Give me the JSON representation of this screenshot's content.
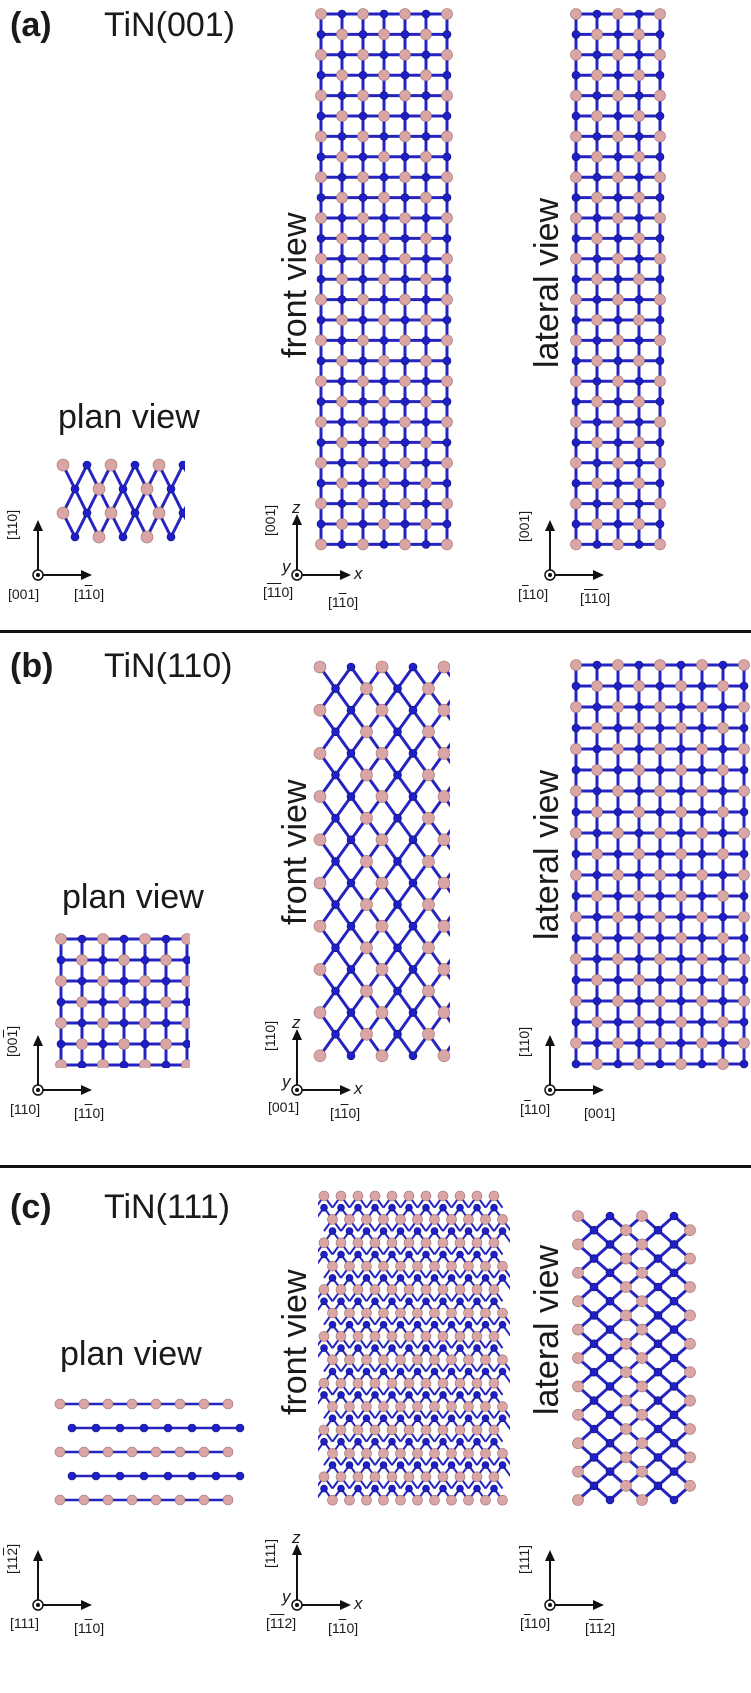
{
  "panels": [
    {
      "label": "(a)",
      "title_prefix": "TiN",
      "title_suffix": "(001)",
      "plan_view_label": "plan view",
      "front_view_label": "front view",
      "lateral_view_label": "lateral view",
      "plan_axes": {
        "vertical": "[110]",
        "origin": "[001]",
        "horizontal": "[1̅1̅0]"
      },
      "front_axes": {
        "vertical": "[001]",
        "z": "z",
        "y": "y",
        "x": "x",
        "origin": "[1̅ 1̅0]",
        "horizontal": "[11̅0]"
      },
      "lateral_axes": {
        "vertical": "[001]",
        "origin": "[1̅10]",
        "horizontal": "[1̅1̅0]"
      }
    },
    {
      "label": "(b)",
      "title_prefix": "TiN",
      "title_suffix": "(110)",
      "plan_view_label": "plan view",
      "front_view_label": "front view",
      "lateral_view_label": "lateral view",
      "plan_axes": {
        "vertical": "[001̅]",
        "origin": "[110]",
        "horizontal": "[11̅0]"
      },
      "front_axes": {
        "vertical": "[110]",
        "z": "z",
        "y": "y",
        "x": "x",
        "origin": "[001]",
        "horizontal": "[11̅0]"
      },
      "lateral_axes": {
        "vertical": "[110]",
        "origin": "[1̅10]",
        "horizontal": "[001]"
      }
    },
    {
      "label": "(c)",
      "title_prefix": "TiN",
      "title_suffix": "(111)",
      "plan_view_label": "plan view",
      "front_view_label": "front view",
      "lateral_view_label": "lateral view",
      "plan_axes": {
        "vertical": "[112̅]",
        "origin": "[111]",
        "horizontal": "[11̅0]"
      },
      "front_axes": {
        "vertical": "[111]",
        "z": "z",
        "y": "y",
        "x": "x",
        "origin": "[1̅1̅2]",
        "horizontal": "[11̅0]"
      },
      "lateral_axes": {
        "vertical": "[111]",
        "origin": "[1̅10]",
        "horizontal": "[1̅1̅2]"
      }
    }
  ],
  "colors": {
    "ti_atom": "#d9a5a5",
    "n_atom": "#1f1fc8",
    "bond_light": "#d4a8a8",
    "bond_dark": "#2424c0",
    "divider": "#111111"
  }
}
